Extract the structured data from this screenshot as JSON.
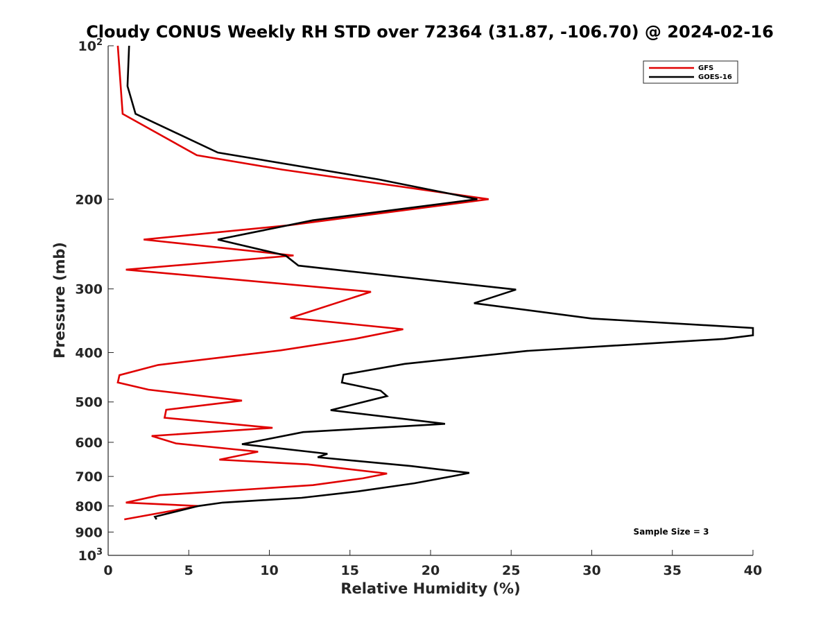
{
  "chart_data": {
    "type": "line",
    "title": "Cloudy CONUS Weekly RH STD over 72364 (31.87, -106.70) @ 2024-02-16",
    "xlabel": "Relative Humidity (%)",
    "ylabel": "Pressure (mb)",
    "xlim": [
      0,
      40
    ],
    "ylim": [
      100,
      1000
    ],
    "y_scale": "log",
    "y_reversed": true,
    "grid": false,
    "legend_position": "top-right",
    "x_ticks": [
      0,
      5,
      10,
      15,
      20,
      25,
      30,
      35,
      40
    ],
    "y_ticks": [
      {
        "value": 100,
        "label": "10",
        "sup": "2"
      },
      {
        "value": 200,
        "label": "200",
        "sup": ""
      },
      {
        "value": 300,
        "label": "300",
        "sup": ""
      },
      {
        "value": 400,
        "label": "400",
        "sup": ""
      },
      {
        "value": 500,
        "label": "500",
        "sup": ""
      },
      {
        "value": 600,
        "label": "600",
        "sup": ""
      },
      {
        "value": 700,
        "label": "700",
        "sup": ""
      },
      {
        "value": 800,
        "label": "800",
        "sup": ""
      },
      {
        "value": 900,
        "label": "900",
        "sup": ""
      },
      {
        "value": 1000,
        "label": "10",
        "sup": "3"
      }
    ],
    "series": [
      {
        "name": "GFS",
        "color": "#e00000",
        "points": [
          [
            0.6,
            100
          ],
          [
            0.9,
            136
          ],
          [
            5.5,
            164
          ],
          [
            10.8,
            175
          ],
          [
            23.6,
            200
          ],
          [
            11.2,
            225
          ],
          [
            2.2,
            240
          ],
          [
            11.5,
            258
          ],
          [
            1.1,
            275
          ],
          [
            16.3,
            304
          ],
          [
            11.3,
            342
          ],
          [
            18.3,
            360
          ],
          [
            15.3,
            376
          ],
          [
            10.7,
            396
          ],
          [
            3.1,
            423
          ],
          [
            0.7,
            443
          ],
          [
            0.6,
            458
          ],
          [
            2.5,
            473
          ],
          [
            8.3,
            497
          ],
          [
            3.6,
            518
          ],
          [
            3.5,
            537
          ],
          [
            10.2,
            562
          ],
          [
            2.7,
            583
          ],
          [
            4.2,
            603
          ],
          [
            9.3,
            626
          ],
          [
            6.9,
            649
          ],
          [
            12.4,
            663
          ],
          [
            17.3,
            691
          ],
          [
            15.8,
            706
          ],
          [
            12.7,
            728
          ],
          [
            3.2,
            762
          ],
          [
            1.1,
            788
          ],
          [
            5.6,
            800
          ],
          [
            1.0,
            850
          ]
        ]
      },
      {
        "name": "GOES-16",
        "color": "#000000",
        "points": [
          [
            1.3,
            100
          ],
          [
            1.2,
            120
          ],
          [
            1.7,
            136
          ],
          [
            6.8,
            162
          ],
          [
            16.8,
            183
          ],
          [
            22.9,
            200
          ],
          [
            12.7,
            220
          ],
          [
            6.8,
            240
          ],
          [
            11.0,
            258
          ],
          [
            11.8,
            270
          ],
          [
            25.3,
            301
          ],
          [
            22.7,
            320
          ],
          [
            30.0,
            343
          ],
          [
            40.0,
            358
          ],
          [
            40.0,
            370
          ],
          [
            38.2,
            376
          ],
          [
            26.0,
            397
          ],
          [
            18.4,
            421
          ],
          [
            14.6,
            442
          ],
          [
            14.5,
            458
          ],
          [
            16.9,
            475
          ],
          [
            17.3,
            487
          ],
          [
            13.8,
            519
          ],
          [
            20.9,
            552
          ],
          [
            12.1,
            573
          ],
          [
            8.3,
            605
          ],
          [
            13.6,
            632
          ],
          [
            13.0,
            642
          ],
          [
            18.8,
            668
          ],
          [
            22.4,
            689
          ],
          [
            21.3,
            700
          ],
          [
            19.0,
            722
          ],
          [
            15.5,
            749
          ],
          [
            12.0,
            771
          ],
          [
            7.1,
            788
          ],
          [
            5.6,
            800
          ],
          [
            2.9,
            840
          ],
          [
            3.0,
            850
          ]
        ]
      }
    ],
    "annotation": "Sample Size = 3"
  }
}
